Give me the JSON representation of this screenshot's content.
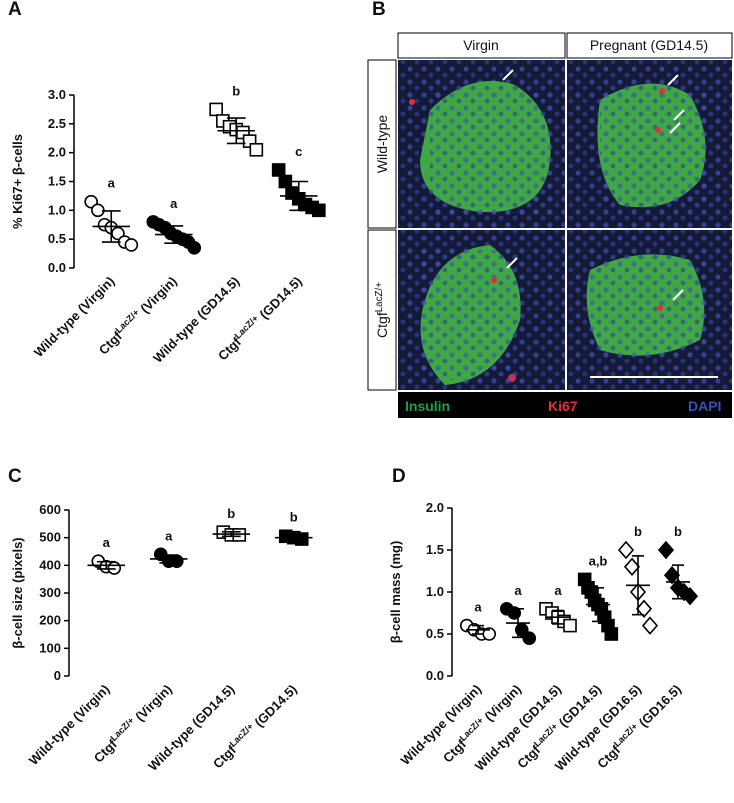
{
  "chart_data": [
    {
      "type": "dot-plot",
      "panel": "A",
      "y_label": "% Ki67+ β-cells",
      "categories": [
        "Wild-type (Virgin)",
        {
          "base": "Ctgf",
          "sup": "LacZ/+",
          "tail": " (Virgin)"
        },
        "Wild-type (GD14.5)",
        {
          "base": "Ctgf",
          "sup": "LacZ/+",
          "tail": " (GD14.5)"
        }
      ],
      "markers": [
        "open-circle",
        "filled-circle",
        "open-square",
        "filled-square"
      ],
      "points": [
        [
          1.15,
          1.0,
          0.75,
          0.7,
          0.6,
          0.45,
          0.4
        ],
        [
          0.8,
          0.75,
          0.7,
          0.6,
          0.55,
          0.5,
          0.45,
          0.35
        ],
        [
          2.75,
          2.55,
          2.45,
          2.4,
          2.35,
          2.2,
          2.05
        ],
        [
          1.7,
          1.5,
          1.3,
          1.2,
          1.1,
          1.05,
          1.0
        ]
      ],
      "means": [
        0.72,
        0.58,
        2.38,
        1.25
      ],
      "sd": [
        0.27,
        0.15,
        0.22,
        0.25
      ],
      "letters": [
        "a",
        "a",
        "b",
        "c"
      ],
      "ylim": [
        0,
        3
      ],
      "yticks": [
        {
          "value": 0,
          "label": "0.0"
        },
        {
          "value": 0.5,
          "label": "0.5"
        },
        {
          "value": 1,
          "label": "1.0"
        },
        {
          "value": 1.5,
          "label": "1.5"
        },
        {
          "value": 2,
          "label": "2.0"
        },
        {
          "value": 2.5,
          "label": "2.5"
        },
        {
          "value": 3,
          "label": "3.0"
        }
      ]
    },
    {
      "type": "dot-plot",
      "panel": "C",
      "y_label": "β-cell size (pixels)",
      "categories": [
        "Wild-type (Virgin)",
        {
          "base": "Ctgf",
          "sup": "LacZ/+",
          "tail": " (Virgin)"
        },
        "Wild-type (GD14.5)",
        {
          "base": "Ctgf",
          "sup": "LacZ/+",
          "tail": " (GD14.5)"
        }
      ],
      "markers": [
        "open-circle",
        "filled-circle",
        "open-square",
        "filled-square"
      ],
      "points": [
        [
          415,
          395,
          390
        ],
        [
          440,
          415,
          415
        ],
        [
          520,
          510,
          510
        ],
        [
          505,
          500,
          495
        ]
      ],
      "means": [
        400,
        423,
        513,
        500
      ],
      "sd": [
        13,
        14,
        8,
        8
      ],
      "letters": [
        "a",
        "a",
        "b",
        "b"
      ],
      "ylim": [
        0,
        600
      ],
      "yticks": [
        0,
        100,
        200,
        300,
        400,
        500,
        600
      ]
    },
    {
      "type": "dot-plot",
      "panel": "D",
      "y_label": "β-cell mass (mg)",
      "categories": [
        "Wild-type (Virgin)",
        {
          "base": "Ctgf",
          "sup": "LacZ/+",
          "tail": " (Virgin)"
        },
        "Wild-type (GD14.5)",
        {
          "base": "Ctgf",
          "sup": "LacZ/+",
          "tail": " (GD14.5)"
        },
        "Wild-type (GD16.5)",
        {
          "base": "Ctgf",
          "sup": "LacZ/+",
          "tail": " (GD16.5)"
        }
      ],
      "markers": [
        "open-circle",
        "filled-circle",
        "open-square",
        "filled-square",
        "open-diamond",
        "filled-diamond"
      ],
      "points": [
        [
          0.6,
          0.55,
          0.5,
          0.5
        ],
        [
          0.8,
          0.75,
          0.55,
          0.45
        ],
        [
          0.8,
          0.75,
          0.7,
          0.65,
          0.6
        ],
        [
          1.15,
          1.05,
          1.0,
          0.9,
          0.85,
          0.8,
          0.7,
          0.6,
          0.5
        ],
        [
          1.5,
          1.3,
          1.0,
          0.8,
          0.6
        ],
        [
          1.5,
          1.2,
          1.05,
          1.0,
          0.95
        ]
      ],
      "means": [
        0.55,
        0.63,
        0.7,
        0.85,
        1.08,
        1.12
      ],
      "sd": [
        0.05,
        0.17,
        0.08,
        0.2,
        0.35,
        0.2
      ],
      "letters": [
        "a",
        "a",
        "a",
        "a,b",
        "b",
        "b"
      ],
      "ylim": [
        0,
        2
      ],
      "yticks": [
        {
          "value": 0,
          "label": "0.0"
        },
        {
          "value": 0.5,
          "label": "0.5"
        },
        {
          "value": 1,
          "label": "1.0"
        },
        {
          "value": 1.5,
          "label": "1.5"
        },
        {
          "value": 2,
          "label": "2.0"
        }
      ]
    }
  ],
  "image_panel": {
    "panel": "B",
    "columns": [
      "Virgin",
      "Pregnant (GD14.5)"
    ],
    "rows": [
      "Wild-type",
      {
        "base": "Ctgf",
        "sup": "LacZ/+"
      }
    ],
    "stains": [
      "Insulin",
      "Ki67",
      "DAPI"
    ]
  }
}
